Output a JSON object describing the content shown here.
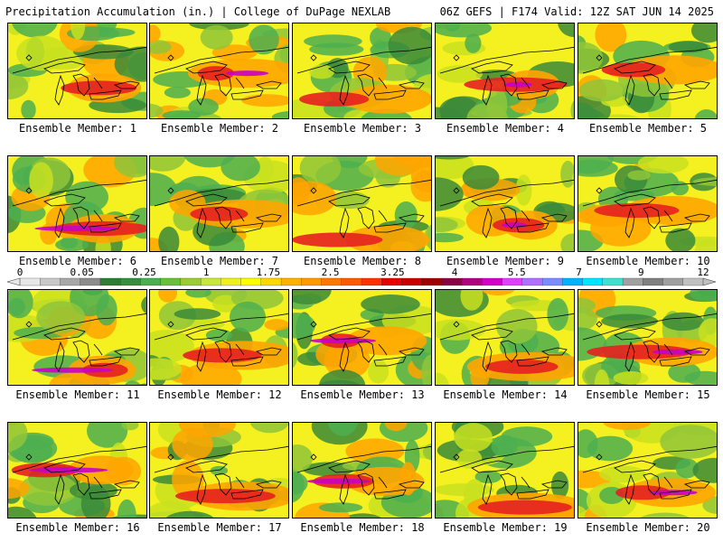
{
  "header": {
    "left": "Precipitation Accumulation (in.) | College of DuPage NEXLAB",
    "right": "06Z GEFS | F174 Valid: 12Z SAT JUN 14 2025"
  },
  "panels": [
    {
      "label": "Ensemble Member: 1"
    },
    {
      "label": "Ensemble Member: 2"
    },
    {
      "label": "Ensemble Member: 3"
    },
    {
      "label": "Ensemble Member: 4"
    },
    {
      "label": "Ensemble Member: 5"
    },
    {
      "label": "Ensemble Member: 6"
    },
    {
      "label": "Ensemble Member: 7"
    },
    {
      "label": "Ensemble Member: 8"
    },
    {
      "label": "Ensemble Member: 9"
    },
    {
      "label": "Ensemble Member: 10"
    },
    {
      "label": "Ensemble Member: 11"
    },
    {
      "label": "Ensemble Member: 12"
    },
    {
      "label": "Ensemble Member: 13"
    },
    {
      "label": "Ensemble Member: 14"
    },
    {
      "label": "Ensemble Member: 15"
    },
    {
      "label": "Ensemble Member: 16"
    },
    {
      "label": "Ensemble Member: 17"
    },
    {
      "label": "Ensemble Member: 18"
    },
    {
      "label": "Ensemble Member: 19"
    },
    {
      "label": "Ensemble Member: 20"
    }
  ],
  "colorbar": {
    "tick_labels": [
      "0",
      "0.05",
      "0.25",
      "1",
      "1.75",
      "2.5",
      "3.25",
      "4",
      "5.5",
      "7",
      "9",
      "12"
    ],
    "colors": [
      "#e8e8e8",
      "#c8c8c8",
      "#a8a8a8",
      "#8c8c8c",
      "#2e7d32",
      "#388e3c",
      "#4caf50",
      "#6abf3a",
      "#9acd32",
      "#c8e63c",
      "#f0f020",
      "#ffff00",
      "#ffd700",
      "#ffb000",
      "#ff9900",
      "#ff7700",
      "#ff5a00",
      "#ff3300",
      "#e60000",
      "#c80000",
      "#a00000",
      "#8b0045",
      "#b00080",
      "#d400c8",
      "#e040fb",
      "#b070ff",
      "#7a8cff",
      "#00b4ff",
      "#00e5ff",
      "#40e0d0",
      "#a0a0a0",
      "#808080",
      "#a0a0a0",
      "#c0c0c0"
    ]
  },
  "palette": {
    "green_dark": "#3a8a3a",
    "green": "#4caf50",
    "green_light": "#8fc63a",
    "yellow_green": "#c8e020",
    "yellow": "#f5f020",
    "orange": "#ffa500",
    "red": "#e62020",
    "magenta": "#c800c8",
    "violet": "#e070ff"
  }
}
